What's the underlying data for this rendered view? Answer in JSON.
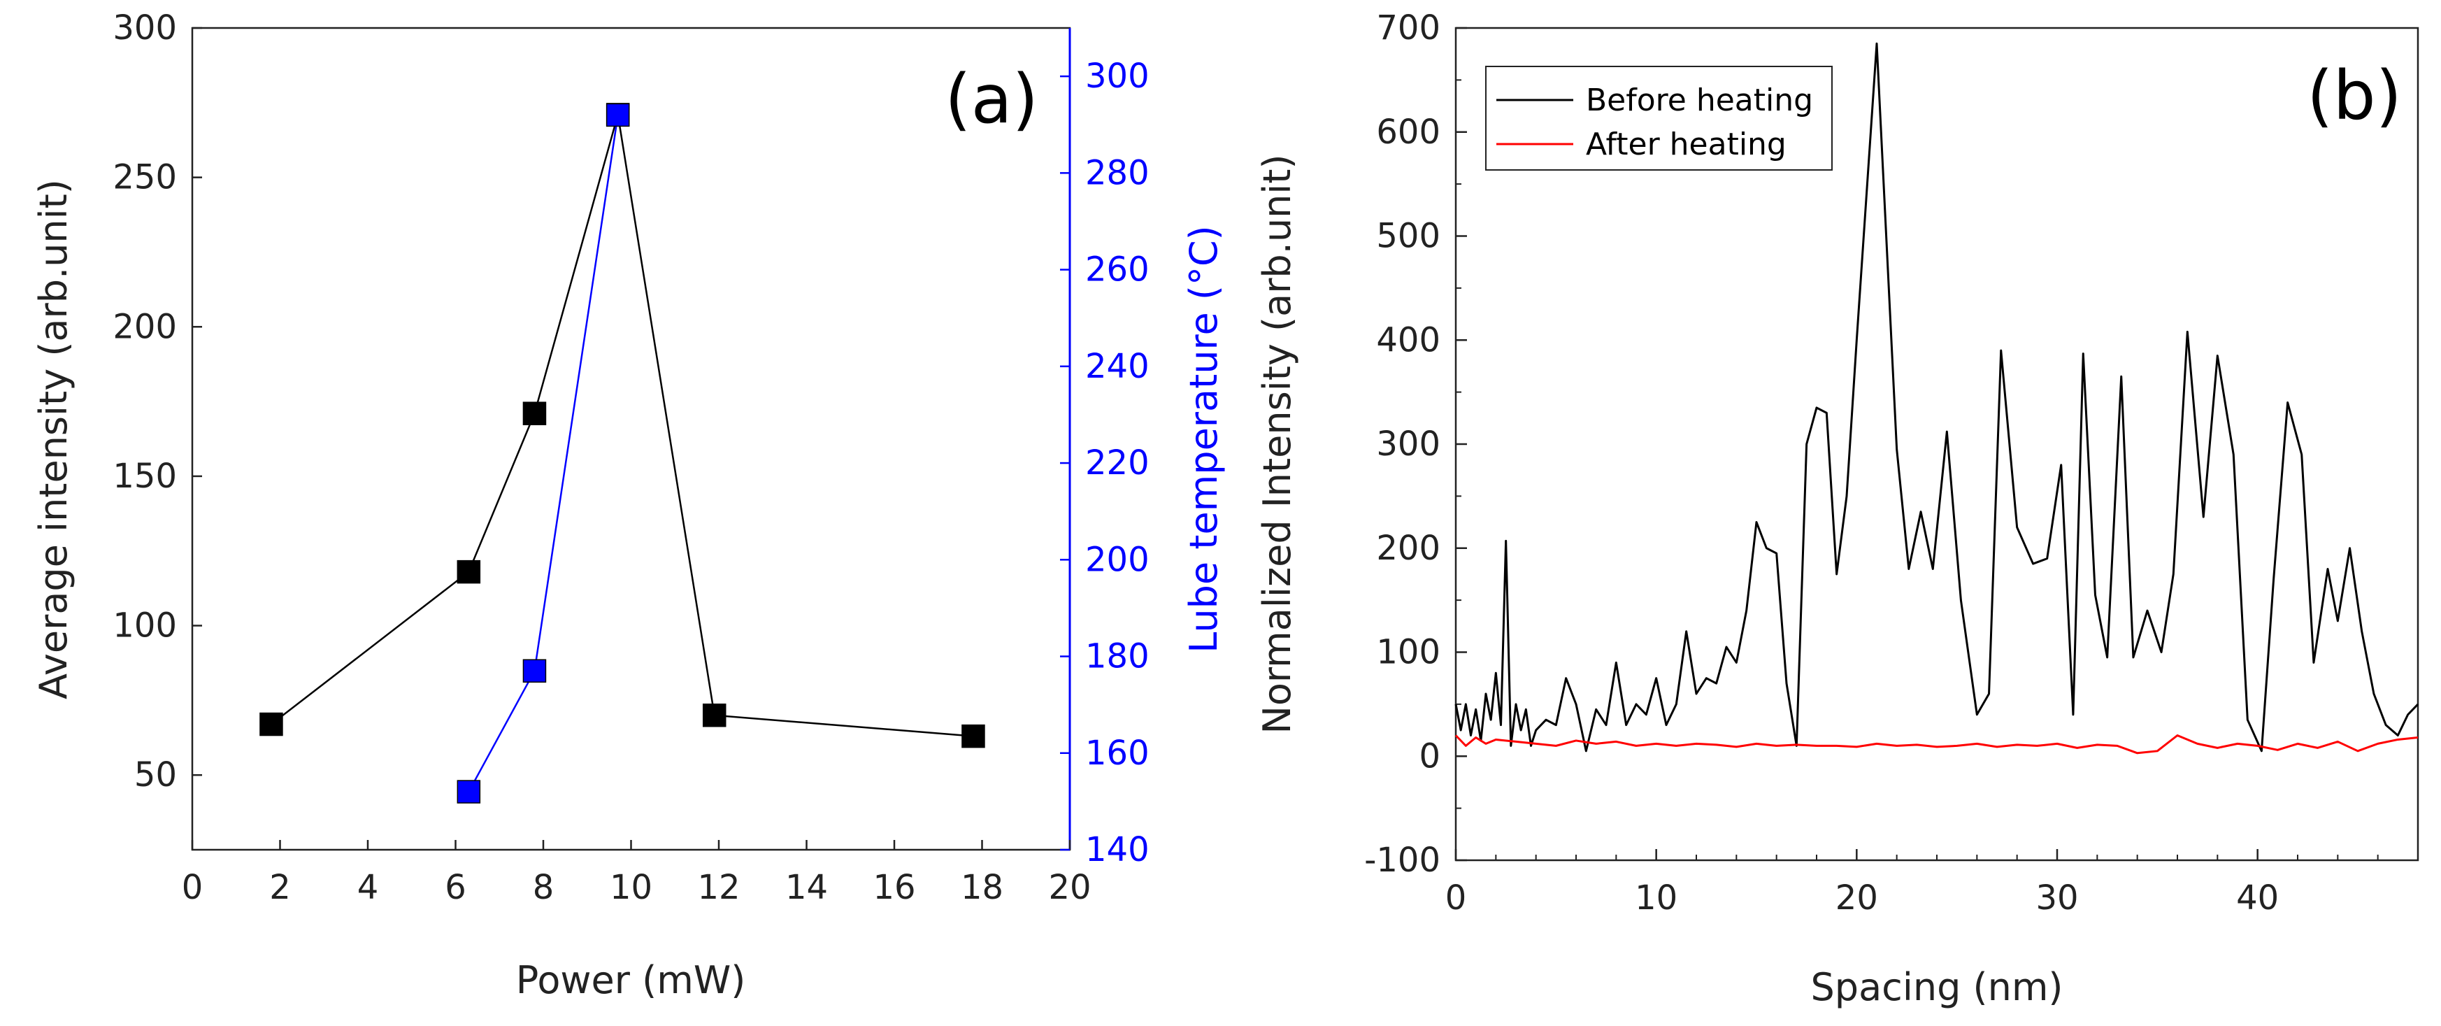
{
  "colors": {
    "black_series": "#000000",
    "blue_series": "#0000ff",
    "red_series": "#ff0000",
    "axis_dark": "#222222",
    "axis_blue": "#0000ff"
  },
  "chart_data": [
    {
      "type": "line",
      "panel_label": "(a)",
      "xlabel": "Power (mW)",
      "ylabel": "Average intensity (arb.unit)",
      "y2label": "Lube temperature (°C)",
      "xlim": [
        0,
        20
      ],
      "ylim": [
        25,
        300
      ],
      "y2lim": [
        140,
        310
      ],
      "xticks": [
        0,
        2,
        4,
        6,
        8,
        10,
        12,
        14,
        16,
        18,
        20
      ],
      "yticks": [
        50,
        100,
        150,
        200,
        250,
        300
      ],
      "y2ticks": [
        140,
        160,
        180,
        200,
        220,
        240,
        260,
        280,
        300
      ],
      "series": [
        {
          "name": "Average intensity",
          "axis": "left",
          "marker": "square",
          "x": [
            1.8,
            6.3,
            7.8,
            9.7,
            11.9,
            17.8
          ],
          "y": [
            67,
            118,
            171,
            271,
            70,
            63
          ]
        },
        {
          "name": "Lube temperature",
          "axis": "right",
          "marker": "square",
          "x": [
            6.3,
            7.8,
            9.7
          ],
          "y": [
            152,
            177,
            292
          ]
        }
      ]
    },
    {
      "type": "line",
      "panel_label": "(b)",
      "xlabel": "Spacing (nm)",
      "ylabel": "Normalized Intensity (arb.unit)",
      "xlim": [
        0,
        48
      ],
      "ylim": [
        -100,
        700
      ],
      "xticks": [
        0,
        10,
        20,
        30,
        40
      ],
      "yticks": [
        -100,
        0,
        100,
        200,
        300,
        400,
        500,
        600,
        700
      ],
      "legend_position": "top-left",
      "series": [
        {
          "name": "Before heating",
          "x": [
            0,
            0.25,
            0.5,
            0.75,
            1.0,
            1.25,
            1.5,
            1.75,
            2.0,
            2.25,
            2.5,
            2.75,
            3.0,
            3.25,
            3.5,
            3.75,
            4.0,
            4.5,
            5.0,
            5.5,
            6.0,
            6.5,
            7.0,
            7.5,
            8.0,
            8.5,
            9.0,
            9.5,
            10.0,
            10.5,
            11.0,
            11.5,
            12.0,
            12.5,
            13.0,
            13.5,
            14.0,
            14.5,
            15.0,
            15.5,
            16.0,
            16.5,
            17.0,
            17.5,
            18.0,
            18.5,
            19.0,
            19.5,
            20.0,
            21.0,
            22.0,
            22.6,
            23.2,
            23.8,
            24.5,
            25.2,
            26.0,
            26.6,
            27.2,
            28.0,
            28.8,
            29.5,
            30.2,
            30.8,
            31.3,
            31.9,
            32.5,
            33.2,
            33.8,
            34.5,
            35.2,
            35.8,
            36.5,
            37.3,
            38.0,
            38.8,
            39.5,
            40.2,
            40.8,
            41.5,
            42.2,
            42.8,
            43.5,
            44.0,
            44.6,
            45.2,
            45.8,
            46.4,
            47.0,
            47.5,
            48.0
          ],
          "y": [
            50,
            25,
            50,
            20,
            45,
            15,
            60,
            35,
            80,
            30,
            207,
            10,
            50,
            25,
            45,
            10,
            25,
            35,
            30,
            75,
            50,
            5,
            45,
            30,
            90,
            30,
            50,
            40,
            75,
            30,
            50,
            120,
            60,
            75,
            70,
            105,
            90,
            140,
            225,
            200,
            195,
            70,
            10,
            300,
            335,
            330,
            175,
            250,
            400,
            685,
            295,
            180,
            235,
            180,
            312,
            150,
            40,
            60,
            390,
            220,
            185,
            190,
            280,
            40,
            387,
            155,
            95,
            365,
            95,
            140,
            100,
            175,
            408,
            230,
            385,
            290,
            35,
            5,
            170,
            340,
            290,
            90,
            180,
            130,
            200,
            120,
            60,
            30,
            20,
            40,
            50
          ]
        },
        {
          "name": "After heating",
          "x": [
            0,
            0.5,
            1.0,
            1.5,
            2.0,
            3,
            4,
            5,
            6,
            7,
            8,
            9,
            10,
            11,
            12,
            13,
            14,
            15,
            16,
            17,
            18,
            19,
            20,
            21,
            22,
            23,
            24,
            25,
            26,
            27,
            28,
            29,
            30,
            31,
            32,
            33,
            34,
            35,
            36,
            37,
            38,
            39,
            40,
            41,
            42,
            43,
            44,
            45,
            46,
            47,
            48
          ],
          "y": [
            20,
            10,
            18,
            12,
            16,
            14,
            12,
            10,
            15,
            12,
            14,
            10,
            12,
            10,
            12,
            11,
            9,
            12,
            10,
            11,
            10,
            10,
            9,
            12,
            10,
            11,
            9,
            10,
            12,
            9,
            11,
            10,
            12,
            8,
            11,
            10,
            3,
            5,
            20,
            12,
            8,
            12,
            10,
            6,
            12,
            8,
            14,
            5,
            12,
            16,
            18
          ]
        }
      ]
    }
  ]
}
